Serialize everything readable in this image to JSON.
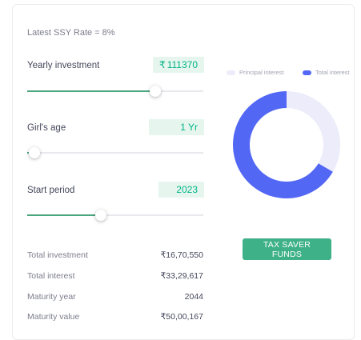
{
  "rate_text": "Latest SSY Rate = 8%",
  "fields": {
    "yearly_investment": {
      "label": "Yearly investment",
      "currency": "₹",
      "value": "111370",
      "slider_fraction": 0.725
    },
    "girls_age": {
      "label": "Girl's age",
      "value": "1 Yr",
      "slider_fraction": 0.04
    },
    "start_period": {
      "label": "Start period",
      "value": "2023",
      "slider_fraction": 0.42
    }
  },
  "legend": {
    "principal": {
      "label": "Principal interest",
      "color": "#ececfa"
    },
    "total": {
      "label": "Total interest",
      "color": "#5367f5"
    }
  },
  "chart_data": {
    "type": "pie",
    "donut": true,
    "series": [
      {
        "name": "Principal interest",
        "value": 1670550,
        "color": "#ececfa"
      },
      {
        "name": "Total interest",
        "value": 3329617,
        "color": "#5367f5"
      }
    ]
  },
  "button": {
    "label": "TAX SAVER FUNDS"
  },
  "summary": [
    {
      "label": "Total investment",
      "value": "₹16,70,550"
    },
    {
      "label": "Total interest",
      "value": "₹33,29,617"
    },
    {
      "label": "Maturity year",
      "value": "2044"
    },
    {
      "label": "Maturity value",
      "value": "₹50,00,167"
    }
  ]
}
